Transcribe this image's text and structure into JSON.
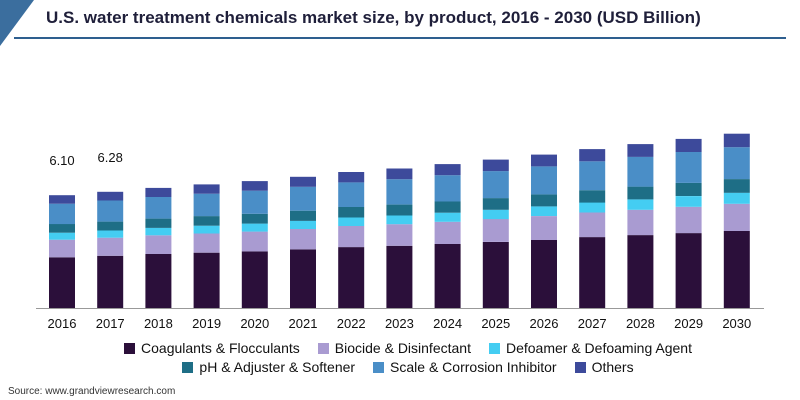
{
  "chart_data": {
    "type": "bar",
    "stacked": true,
    "title": "U.S. water treatment chemicals market size, by product, 2016 - 2030 (USD Billion)",
    "xlabel": "",
    "ylabel": "",
    "categories": [
      "2016",
      "2017",
      "2018",
      "2019",
      "2020",
      "2021",
      "2022",
      "2023",
      "2024",
      "2025",
      "2026",
      "2027",
      "2028",
      "2029",
      "2030"
    ],
    "ylim": [
      0,
      10
    ],
    "data_labels": [
      {
        "category": "2016",
        "text": "6.10"
      },
      {
        "category": "2017",
        "text": "6.28"
      }
    ],
    "series": [
      {
        "name": "Coagulants & Flocculants",
        "color": "#2b0f3a",
        "values": [
          2.74,
          2.82,
          2.92,
          2.99,
          3.06,
          3.17,
          3.29,
          3.36,
          3.46,
          3.57,
          3.68,
          3.83,
          3.94,
          4.05,
          4.16
        ]
      },
      {
        "name": "Biocide & Disinfectant",
        "color": "#a99bd1",
        "values": [
          0.95,
          0.98,
          1.01,
          1.04,
          1.07,
          1.1,
          1.14,
          1.17,
          1.2,
          1.24,
          1.29,
          1.33,
          1.37,
          1.42,
          1.47
        ]
      },
      {
        "name": "Defoamer & Defoaming Agent",
        "color": "#44cdf2",
        "values": [
          0.38,
          0.39,
          0.4,
          0.42,
          0.43,
          0.44,
          0.46,
          0.47,
          0.49,
          0.5,
          0.52,
          0.54,
          0.56,
          0.58,
          0.6
        ]
      },
      {
        "name": "pH & Adjuster & Softener",
        "color": "#1e6e86",
        "values": [
          0.47,
          0.48,
          0.5,
          0.52,
          0.53,
          0.55,
          0.57,
          0.59,
          0.61,
          0.63,
          0.65,
          0.67,
          0.69,
          0.71,
          0.74
        ]
      },
      {
        "name": "Scale & Corrosion Inhibitor",
        "color": "#4a8ec7",
        "values": [
          1.1,
          1.14,
          1.17,
          1.21,
          1.25,
          1.29,
          1.33,
          1.37,
          1.42,
          1.46,
          1.51,
          1.56,
          1.61,
          1.67,
          1.72
        ]
      },
      {
        "name": "Others",
        "color": "#3d4a9b",
        "values": [
          0.46,
          0.47,
          0.49,
          0.5,
          0.52,
          0.54,
          0.56,
          0.58,
          0.6,
          0.62,
          0.64,
          0.66,
          0.69,
          0.71,
          0.73
        ]
      }
    ]
  },
  "legend": {
    "rows": [
      [
        0,
        1,
        2
      ],
      [
        3,
        4,
        5
      ]
    ]
  },
  "source": "Source: www.grandviewresearch.com"
}
